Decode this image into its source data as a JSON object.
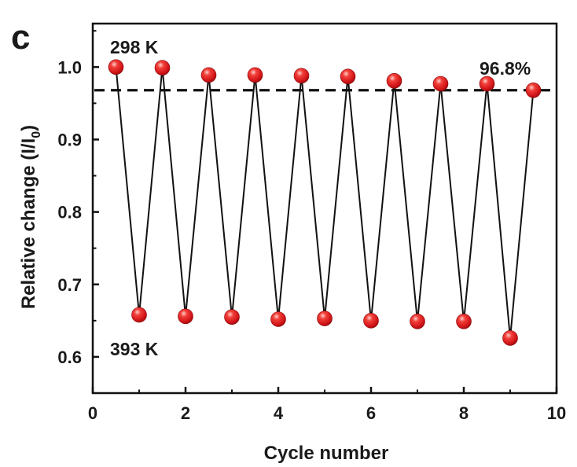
{
  "panel_label": "c",
  "chart_data": {
    "type": "line",
    "xlabel": "Cycle number",
    "ylabel_main": "Relative change (I/I",
    "ylabel_sub": "0",
    "ylabel_close": ")",
    "xlim": [
      0,
      10
    ],
    "ylim": [
      0.55,
      1.06
    ],
    "x_ticks": [
      0,
      2,
      4,
      6,
      8,
      10
    ],
    "y_ticks": [
      0.6,
      0.7,
      0.8,
      0.9,
      1.0
    ],
    "x_tick_labels": [
      "0",
      "2",
      "4",
      "6",
      "8",
      "10"
    ],
    "y_tick_labels": [
      "0.6",
      "0.7",
      "0.8",
      "0.9",
      "1.0"
    ],
    "grid": false,
    "series": [
      {
        "x": [
          0.5,
          1.0,
          1.5,
          2.0,
          2.5,
          3.0,
          3.5,
          4.0,
          4.5,
          5.0,
          5.5,
          6.0,
          6.5,
          7.0,
          7.5,
          8.0,
          8.5,
          9.0,
          9.5
        ],
        "values": [
          1.0,
          0.658,
          0.999,
          0.656,
          0.989,
          0.655,
          0.989,
          0.652,
          0.988,
          0.653,
          0.987,
          0.65,
          0.981,
          0.649,
          0.977,
          0.649,
          0.977,
          0.626,
          0.968
        ],
        "line_color": "#111111",
        "marker_color": "#e8191e"
      }
    ],
    "reference_line": {
      "y": 0.968,
      "style": "dashed",
      "color": "#111111"
    },
    "annotations": {
      "top": "298 K",
      "bottom": "393 K",
      "retention": "96.8%"
    }
  }
}
